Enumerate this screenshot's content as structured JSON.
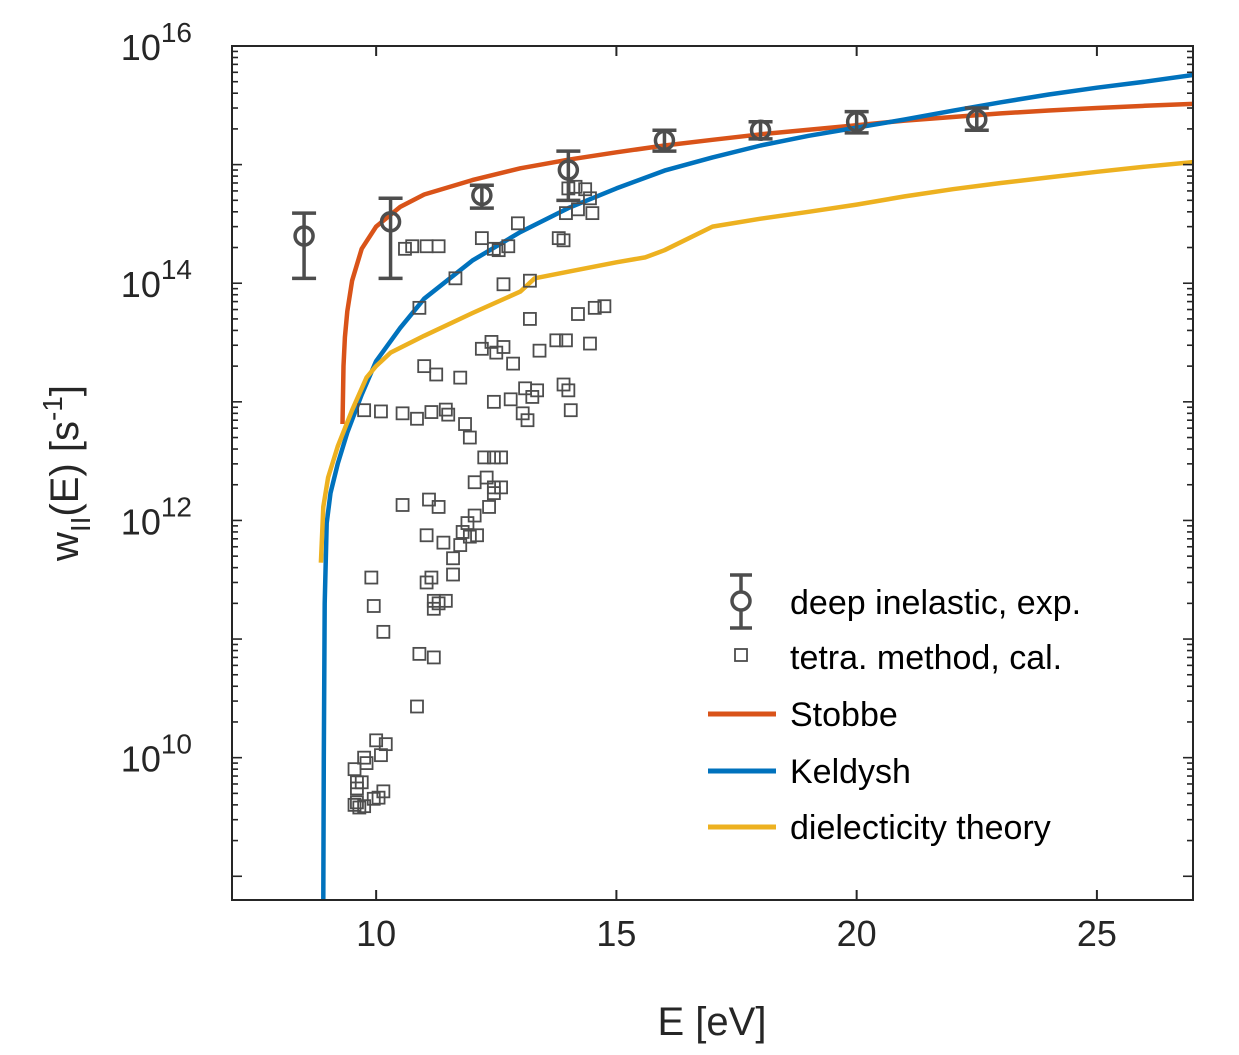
{
  "chart_data": {
    "type": "scatter",
    "xlabel": "E [eV]",
    "ylabel": {
      "base": "w",
      "subscript": "II",
      "main": "(E) [s",
      "superscript": "-1",
      "close": "]"
    },
    "xlim": [
      7,
      27
    ],
    "ylim_log10": [
      8.8,
      16
    ],
    "y_scale": "log",
    "grid": false,
    "legend_placement": "bottom-right",
    "x_ticks": [
      10,
      15,
      20,
      25
    ],
    "x_tick_labels": [
      "10",
      "15",
      "20",
      "25"
    ],
    "y_ticks_exponent": [
      10,
      12,
      14,
      16
    ],
    "y_tick_labels": [
      {
        "base": "10",
        "exp": "10"
      },
      {
        "base": "10",
        "exp": "12"
      },
      {
        "base": "10",
        "exp": "14"
      },
      {
        "base": "10",
        "exp": "16"
      }
    ],
    "colors": {
      "axes": "#262626",
      "markers": "#4d4d4d",
      "stobbe": "#d95319",
      "keldysh": "#0072bd",
      "dielecticity": "#edb120"
    },
    "series": [
      {
        "name": "deep inelastic, exp.",
        "kind": "errorbar",
        "points": [
          {
            "x": 8.5,
            "y": 250000000000000.0,
            "ylow": 110000000000000.0,
            "yhigh": 390000000000000.0
          },
          {
            "x": 10.3,
            "y": 330000000000000.0,
            "ylow": 110000000000000.0,
            "yhigh": 520000000000000.0
          },
          {
            "x": 12.2,
            "y": 550000000000000.0,
            "ylow": 430000000000000.0,
            "yhigh": 670000000000000.0
          },
          {
            "x": 14.0,
            "y": 900000000000000.0,
            "ylow": 500000000000000.0,
            "yhigh": 1300000000000000.0
          },
          {
            "x": 16.0,
            "y": 1600000000000000.0,
            "ylow": 1300000000000000.0,
            "yhigh": 1950000000000000.0
          },
          {
            "x": 18.0,
            "y": 1950000000000000.0,
            "ylow": 1650000000000000.0,
            "yhigh": 2300000000000000.0
          },
          {
            "x": 20.0,
            "y": 2300000000000000.0,
            "ylow": 1850000000000000.0,
            "yhigh": 2800000000000000.0
          },
          {
            "x": 22.5,
            "y": 2400000000000000.0,
            "ylow": 1950000000000000.0,
            "yhigh": 3000000000000000.0
          }
        ]
      },
      {
        "name": "tetra. method, cal.",
        "kind": "scatter",
        "points": [
          [
            9.55,
            4000000000.0
          ],
          [
            9.6,
            4200000000.0
          ],
          [
            9.65,
            3800000000.0
          ],
          [
            9.75,
            3900000000.0
          ],
          [
            9.6,
            5500000000.0
          ],
          [
            9.55,
            8000000000.0
          ],
          [
            9.6,
            6200000000.0
          ],
          [
            9.7,
            6200000000.0
          ],
          [
            9.8,
            9000000000.0
          ],
          [
            9.75,
            10000000000.0
          ],
          [
            9.95,
            4500000000.0
          ],
          [
            10.05,
            4600000000.0
          ],
          [
            10.15,
            5200000000.0
          ],
          [
            10.0,
            14000000000.0
          ],
          [
            10.1,
            10500000000.0
          ],
          [
            10.2,
            13000000000.0
          ],
          [
            9.9,
            330000000000.0
          ],
          [
            9.95,
            190000000000.0
          ],
          [
            10.15,
            115000000000.0
          ],
          [
            9.75,
            8500000000000.0
          ],
          [
            10.1,
            8300000000000.0
          ],
          [
            10.55,
            8000000000000.0
          ],
          [
            10.85,
            7200000000000.0
          ],
          [
            11.15,
            8200000000000.0
          ],
          [
            11.45,
            8600000000000.0
          ],
          [
            11.5,
            7800000000000.0
          ],
          [
            10.6,
            195000000000000.0
          ],
          [
            10.75,
            205000000000000.0
          ],
          [
            11.05,
            205000000000000.0
          ],
          [
            11.3,
            205000000000000.0
          ],
          [
            10.9,
            62000000000000.0
          ],
          [
            11.0,
            20000000000000.0
          ],
          [
            11.25,
            17000000000000.0
          ],
          [
            11.75,
            16000000000000.0
          ],
          [
            11.65,
            110000000000000.0
          ],
          [
            10.55,
            1350000000000.0
          ],
          [
            11.1,
            1500000000000.0
          ],
          [
            11.3,
            1300000000000.0
          ],
          [
            11.05,
            750000000000.0
          ],
          [
            11.4,
            650000000000.0
          ],
          [
            11.05,
            300000000000.0
          ],
          [
            11.15,
            330000000000.0
          ],
          [
            11.2,
            210000000000.0
          ],
          [
            11.3,
            200000000000.0
          ],
          [
            11.45,
            210000000000.0
          ],
          [
            11.2,
            180000000000.0
          ],
          [
            10.9,
            75000000000.0
          ],
          [
            11.2,
            70000000000.0
          ],
          [
            10.85,
            27000000000.0
          ],
          [
            11.6,
            350000000000.0
          ],
          [
            11.6,
            480000000000.0
          ],
          [
            11.75,
            620000000000.0
          ],
          [
            11.95,
            730000000000.0
          ],
          [
            11.8,
            800000000000.0
          ],
          [
            11.9,
            950000000000.0
          ],
          [
            12.05,
            1100000000000.0
          ],
          [
            12.1,
            750000000000.0
          ],
          [
            11.85,
            6500000000000.0
          ],
          [
            11.95,
            5000000000000.0
          ],
          [
            12.25,
            3400000000000.0
          ],
          [
            12.45,
            3400000000000.0
          ],
          [
            12.6,
            3400000000000.0
          ],
          [
            12.05,
            2100000000000.0
          ],
          [
            12.3,
            2300000000000.0
          ],
          [
            12.45,
            1900000000000.0
          ],
          [
            12.6,
            1900000000000.0
          ],
          [
            12.45,
            1700000000000.0
          ],
          [
            12.35,
            1300000000000.0
          ],
          [
            12.2,
            28000000000000.0
          ],
          [
            12.5,
            26000000000000.0
          ],
          [
            12.4,
            32000000000000.0
          ],
          [
            12.65,
            29000000000000.0
          ],
          [
            12.85,
            21000000000000.0
          ],
          [
            12.45,
            10000000000000.0
          ],
          [
            12.8,
            10500000000000.0
          ],
          [
            13.05,
            8000000000000.0
          ],
          [
            13.15,
            7000000000000.0
          ],
          [
            13.25,
            11000000000000.0
          ],
          [
            13.35,
            12500000000000.0
          ],
          [
            13.1,
            13000000000000.0
          ],
          [
            13.2,
            50000000000000.0
          ],
          [
            13.4,
            27000000000000.0
          ],
          [
            13.75,
            33000000000000.0
          ],
          [
            13.95,
            33000000000000.0
          ],
          [
            13.9,
            14000000000000.0
          ],
          [
            14.0,
            12500000000000.0
          ],
          [
            14.05,
            8500000000000.0
          ],
          [
            14.2,
            55000000000000.0
          ],
          [
            14.45,
            31000000000000.0
          ],
          [
            14.55,
            62000000000000.0
          ],
          [
            14.75,
            64000000000000.0
          ],
          [
            12.2,
            240000000000000.0
          ],
          [
            12.45,
            195000000000000.0
          ],
          [
            12.55,
            190000000000000.0
          ],
          [
            12.75,
            205000000000000.0
          ],
          [
            12.95,
            320000000000000.0
          ],
          [
            13.2,
            105000000000000.0
          ],
          [
            12.65,
            98000000000000.0
          ],
          [
            13.9,
            230000000000000.0
          ],
          [
            13.95,
            390000000000000.0
          ],
          [
            14.15,
            650000000000000.0
          ],
          [
            14.35,
            620000000000000.0
          ],
          [
            14.45,
            520000000000000.0
          ],
          [
            14.5,
            390000000000000.0
          ],
          [
            14.2,
            420000000000000.0
          ],
          [
            14.0,
            630000000000000.0
          ],
          [
            13.8,
            240000000000000.0
          ]
        ]
      },
      {
        "name": "Stobbe",
        "kind": "line",
        "points": [
          [
            9.3,
            6500000000000.0
          ],
          [
            9.32,
            20000000000000.0
          ],
          [
            9.35,
            35000000000000.0
          ],
          [
            9.4,
            58000000000000.0
          ],
          [
            9.5,
            105000000000000.0
          ],
          [
            9.7,
            195000000000000.0
          ],
          [
            10.0,
            300000000000000.0
          ],
          [
            10.5,
            440000000000000.0
          ],
          [
            11.0,
            560000000000000.0
          ],
          [
            12.0,
            740000000000000.0
          ],
          [
            13.0,
            930000000000000.0
          ],
          [
            14.0,
            1100000000000000.0
          ],
          [
            15.0,
            1270000000000000.0
          ],
          [
            16.0,
            1450000000000000.0
          ],
          [
            17.0,
            1620000000000000.0
          ],
          [
            18.0,
            1800000000000000.0
          ],
          [
            19.0,
            1970000000000000.0
          ],
          [
            20.0,
            2150000000000000.0
          ],
          [
            21.0,
            2350000000000000.0
          ],
          [
            22.0,
            2520000000000000.0
          ],
          [
            23.0,
            2700000000000000.0
          ],
          [
            24.0,
            2860000000000000.0
          ],
          [
            25.0,
            3000000000000000.0
          ],
          [
            26.0,
            3130000000000000.0
          ],
          [
            27.0,
            3250000000000000.0
          ]
        ]
      },
      {
        "name": "Keldysh",
        "kind": "line",
        "points": [
          [
            8.9,
            630000000.0
          ],
          [
            8.91,
            10000000000.0
          ],
          [
            8.93,
            200000000000.0
          ],
          [
            8.97,
            950000000000.0
          ],
          [
            9.05,
            1700000000000.0
          ],
          [
            9.2,
            3000000000000.0
          ],
          [
            9.4,
            5500000000000.0
          ],
          [
            9.7,
            11500000000000.0
          ],
          [
            10.0,
            22000000000000.0
          ],
          [
            10.5,
            42000000000000.0
          ],
          [
            11.0,
            74000000000000.0
          ],
          [
            12.0,
            155000000000000.0
          ],
          [
            13.0,
            270000000000000.0
          ],
          [
            14.0,
            430000000000000.0
          ],
          [
            15.0,
            630000000000000.0
          ],
          [
            16.0,
            890000000000000.0
          ],
          [
            17.0,
            1150000000000000.0
          ],
          [
            18.0,
            1450000000000000.0
          ],
          [
            19.0,
            1750000000000000.0
          ],
          [
            20.0,
            2050000000000000.0
          ],
          [
            21.0,
            2400000000000000.0
          ],
          [
            22.0,
            2850000000000000.0
          ],
          [
            23.0,
            3350000000000000.0
          ],
          [
            24.0,
            3900000000000000.0
          ],
          [
            25.0,
            4450000000000000.0
          ],
          [
            26.0,
            5000000000000000.0
          ],
          [
            27.0,
            5700000000000000.0
          ]
        ]
      },
      {
        "name": "dielecticity theory",
        "kind": "line",
        "points": [
          [
            8.85,
            440000000000.0
          ],
          [
            8.9,
            1300000000000.0
          ],
          [
            9.0,
            2300000000000.0
          ],
          [
            9.2,
            4200000000000.0
          ],
          [
            9.5,
            8500000000000.0
          ],
          [
            9.8,
            16000000000000.0
          ],
          [
            10.0,
            20000000000000.0
          ],
          [
            10.3,
            26000000000000.0
          ],
          [
            11.0,
            36000000000000.0
          ],
          [
            12.0,
            56000000000000.0
          ],
          [
            13.0,
            85000000000000.0
          ],
          [
            13.3,
            110000000000000.0
          ],
          [
            14.0,
            125000000000000.0
          ],
          [
            15.0,
            150000000000000.0
          ],
          [
            15.6,
            165000000000000.0
          ],
          [
            16.0,
            190000000000000.0
          ],
          [
            17.0,
            300000000000000.0
          ],
          [
            18.0,
            350000000000000.0
          ],
          [
            19.0,
            400000000000000.0
          ],
          [
            20.0,
            460000000000000.0
          ],
          [
            21.0,
            540000000000000.0
          ],
          [
            22.0,
            620000000000000.0
          ],
          [
            23.0,
            700000000000000.0
          ],
          [
            24.0,
            780000000000000.0
          ],
          [
            25.0,
            870000000000000.0
          ],
          [
            26.0,
            960000000000000.0
          ],
          [
            27.0,
            1050000000000000.0
          ]
        ]
      }
    ]
  }
}
